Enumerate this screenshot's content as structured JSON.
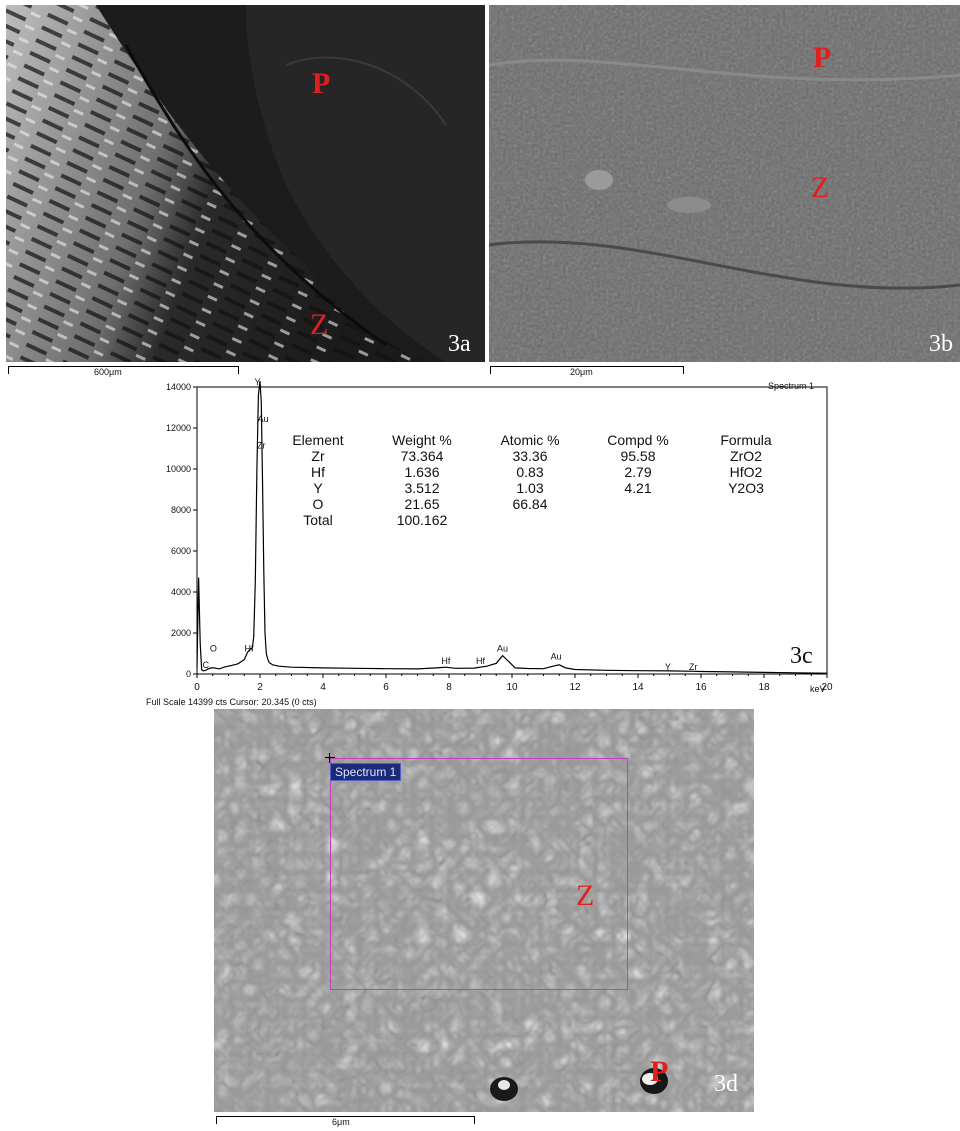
{
  "panels": {
    "a": {
      "label": "3a",
      "scale": "600μm",
      "regions": [
        "P",
        "Z"
      ]
    },
    "b": {
      "label": "3b",
      "scale": "20μm",
      "regions": [
        "P",
        "Z"
      ]
    },
    "c": {
      "label": "3c"
    },
    "d": {
      "label": "3d",
      "scale": "6μm",
      "regions": [
        "Z",
        "P"
      ],
      "box_label": "Spectrum 1"
    }
  },
  "spectrum": {
    "title": "Spectrum 1",
    "footer": "Full Scale 14399 cts Cursor: 20.345  (0 cts)",
    "unit": "keV"
  },
  "composition_table": {
    "headers": [
      "Element",
      "Weight %",
      "Atomic %",
      "Compd %",
      "Formula"
    ],
    "rows": [
      [
        "Zr",
        "73.364",
        "33.36",
        "95.58",
        "ZrO2"
      ],
      [
        "Hf",
        "1.636",
        "0.83",
        "2.79",
        "HfO2"
      ],
      [
        "Y",
        "3.512",
        "1.03",
        "4.21",
        "Y2O3"
      ],
      [
        "O",
        "21.65",
        "66.84",
        "",
        ""
      ],
      [
        "Total",
        "100.162",
        "",
        "",
        ""
      ]
    ]
  },
  "chart_data": {
    "type": "line",
    "title": "Spectrum 1",
    "xlabel": "keV",
    "ylabel": "",
    "xlim": [
      0,
      20
    ],
    "ylim": [
      0,
      14000
    ],
    "x_ticks": [
      0,
      2,
      4,
      6,
      8,
      10,
      12,
      14,
      16,
      18,
      20
    ],
    "y_ticks": [
      0,
      2000,
      4000,
      6000,
      8000,
      10000,
      12000,
      14000
    ],
    "grid": false,
    "series": [
      {
        "x": [
          0.0,
          0.05,
          0.1,
          0.15,
          0.2,
          0.28,
          0.35,
          0.45,
          0.55,
          0.7,
          0.9,
          1.1,
          1.3,
          1.5,
          1.6,
          1.7,
          1.75,
          1.8,
          1.85,
          1.9,
          1.95,
          2.0,
          2.04,
          2.08,
          2.12,
          2.16,
          2.2,
          2.25,
          2.3,
          2.4,
          2.6,
          3.0,
          4.0,
          5.0,
          6.0,
          7.0,
          7.6,
          7.9,
          8.2,
          8.8,
          9.2,
          9.5,
          9.7,
          9.9,
          10.1,
          10.5,
          11.0,
          11.3,
          11.5,
          11.7,
          12.0,
          13.0,
          14.0,
          15.0,
          15.8,
          16.0,
          17.0,
          18.0,
          19.0,
          20.0
        ],
        "y": [
          300,
          4700,
          1500,
          200,
          150,
          180,
          250,
          300,
          300,
          250,
          350,
          420,
          500,
          700,
          1050,
          1250,
          1200,
          1800,
          4500,
          10000,
          13600,
          14300,
          13200,
          9500,
          5000,
          2000,
          1000,
          700,
          550,
          450,
          380,
          330,
          300,
          280,
          260,
          250,
          300,
          330,
          280,
          290,
          380,
          520,
          900,
          600,
          300,
          270,
          260,
          380,
          450,
          300,
          220,
          180,
          160,
          150,
          130,
          120,
          100,
          80,
          60,
          40
        ]
      }
    ],
    "peak_labels": [
      {
        "text": "Y",
        "x": 1.92,
        "y": 14100
      },
      {
        "text": "Au",
        "x": 2.1,
        "y": 12300
      },
      {
        "text": "Zr",
        "x": 2.04,
        "y": 11000
      },
      {
        "text": "O",
        "x": 0.52,
        "y": 1100
      },
      {
        "text": "C",
        "x": 0.28,
        "y": 300
      },
      {
        "text": "Hf",
        "x": 1.65,
        "y": 1100
      },
      {
        "text": "Hf",
        "x": 7.9,
        "y": 500
      },
      {
        "text": "Hf",
        "x": 9.0,
        "y": 500
      },
      {
        "text": "Au",
        "x": 9.7,
        "y": 1100
      },
      {
        "text": "Au",
        "x": 11.4,
        "y": 700
      },
      {
        "text": "Y",
        "x": 14.95,
        "y": 200
      },
      {
        "text": "Zr",
        "x": 15.75,
        "y": 200
      }
    ]
  }
}
